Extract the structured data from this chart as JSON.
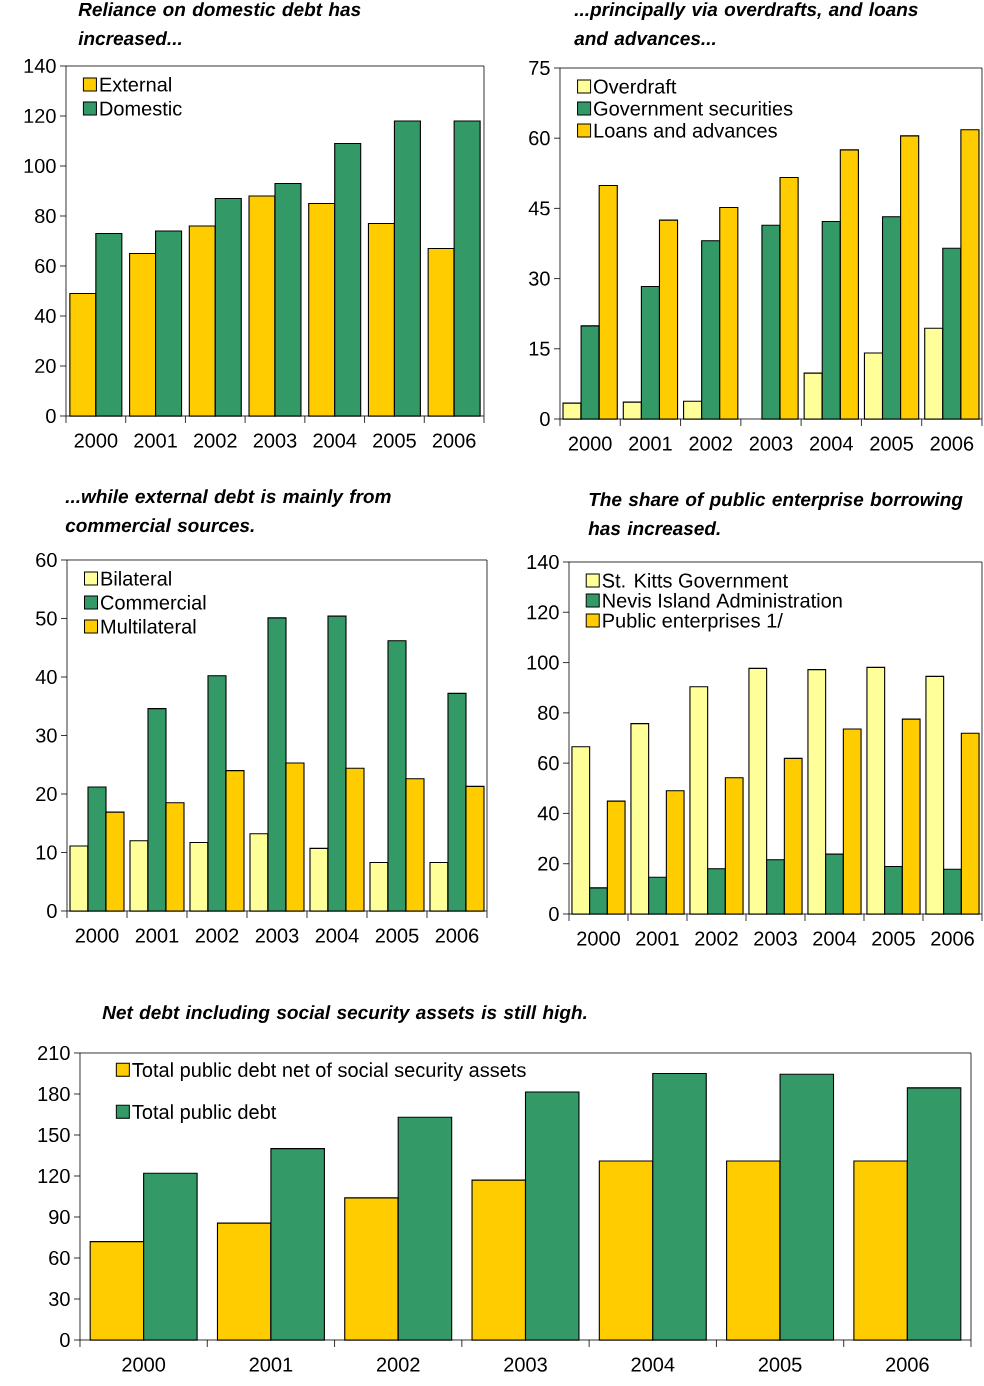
{
  "chart_data": [
    {
      "type": "bar",
      "title": "Reliance on domestic debt has increased...",
      "categories": [
        "2000",
        "2001",
        "2002",
        "2003",
        "2004",
        "2005",
        "2006"
      ],
      "ylim": [
        0,
        140
      ],
      "yticks": [
        0,
        20,
        40,
        60,
        80,
        100,
        120,
        140
      ],
      "legend": "top left",
      "series": [
        {
          "name": "External",
          "color": "#ffcc00",
          "values": [
            49,
            65,
            76,
            88,
            85,
            77,
            67
          ]
        },
        {
          "name": "Domestic",
          "color": "#339966",
          "values": [
            73,
            74,
            87,
            93,
            109,
            118,
            118
          ]
        }
      ]
    },
    {
      "type": "bar",
      "title": "...principally via overdrafts, and loans and advances...",
      "categories": [
        "2000",
        "2001",
        "2002",
        "2003",
        "2004",
        "2005",
        "2006"
      ],
      "ylim": [
        0,
        75
      ],
      "yticks": [
        0,
        15,
        30,
        45,
        60,
        75
      ],
      "legend": "top left",
      "series": [
        {
          "name": "Overdraft",
          "color": "#ffff99",
          "values": [
            3.4,
            3.6,
            3.8,
            null,
            9.8,
            14.1,
            19.4
          ]
        },
        {
          "name": "Government securities",
          "color": "#339966",
          "values": [
            19.9,
            28.3,
            38.1,
            41.4,
            42.2,
            43.2,
            36.5
          ]
        },
        {
          "name": "Loans and advances",
          "color": "#ffcc00",
          "values": [
            49.9,
            42.5,
            45.2,
            51.6,
            57.5,
            60.5,
            61.8
          ]
        }
      ]
    },
    {
      "type": "bar",
      "title": "...while external debt is mainly from commercial sources.",
      "categories": [
        "2000",
        "2001",
        "2002",
        "2003",
        "2004",
        "2005",
        "2006"
      ],
      "ylim": [
        0,
        60
      ],
      "yticks": [
        0,
        10,
        20,
        30,
        40,
        50,
        60
      ],
      "legend": "top left",
      "series": [
        {
          "name": "Bilateral",
          "color": "#ffff99",
          "values": [
            11.1,
            12.0,
            11.7,
            13.2,
            10.7,
            8.3,
            8.3
          ]
        },
        {
          "name": "Commercial",
          "color": "#339966",
          "values": [
            21.2,
            34.6,
            40.2,
            50.1,
            50.4,
            46.2,
            37.2
          ]
        },
        {
          "name": "Multilateral",
          "color": "#ffcc00",
          "values": [
            16.9,
            18.5,
            24.0,
            25.3,
            24.4,
            22.6,
            21.3
          ]
        }
      ]
    },
    {
      "type": "bar",
      "title": "The share of public enterprise borrowing has increased.",
      "categories": [
        "2000",
        "2001",
        "2002",
        "2003",
        "2004",
        "2005",
        "2006"
      ],
      "ylim": [
        0,
        140
      ],
      "yticks": [
        0,
        20,
        40,
        60,
        80,
        100,
        120,
        140
      ],
      "legend": "top left",
      "series": [
        {
          "name": "St. Kitts Government",
          "color": "#ffff99",
          "values": [
            66.5,
            75.7,
            90.4,
            97.7,
            97.2,
            98.1,
            94.5
          ]
        },
        {
          "name": "Nevis Island Administration",
          "color": "#339966",
          "values": [
            10.4,
            14.6,
            18.0,
            21.6,
            23.8,
            18.9,
            17.8
          ]
        },
        {
          "name": "Public enterprises 1/",
          "color": "#ffcc00",
          "values": [
            44.9,
            49.0,
            54.2,
            61.9,
            73.6,
            77.5,
            71.9
          ]
        }
      ]
    },
    {
      "type": "bar",
      "title": "Net debt including social security assets is still high.",
      "categories": [
        "2000",
        "2001",
        "2002",
        "2003",
        "2004",
        "2005",
        "2006"
      ],
      "ylim": [
        0,
        210
      ],
      "yticks": [
        0,
        30,
        60,
        90,
        120,
        150,
        180,
        210
      ],
      "legend": "top left",
      "series": [
        {
          "name": "Total public debt net of social security assets",
          "color": "#ffcc00",
          "values": [
            72,
            85.5,
            104,
            117,
            131,
            131,
            131
          ]
        },
        {
          "name": "Total public debt",
          "color": "#339966",
          "values": [
            122,
            140,
            163,
            181.5,
            195,
            194.5,
            184.5
          ]
        }
      ]
    }
  ]
}
